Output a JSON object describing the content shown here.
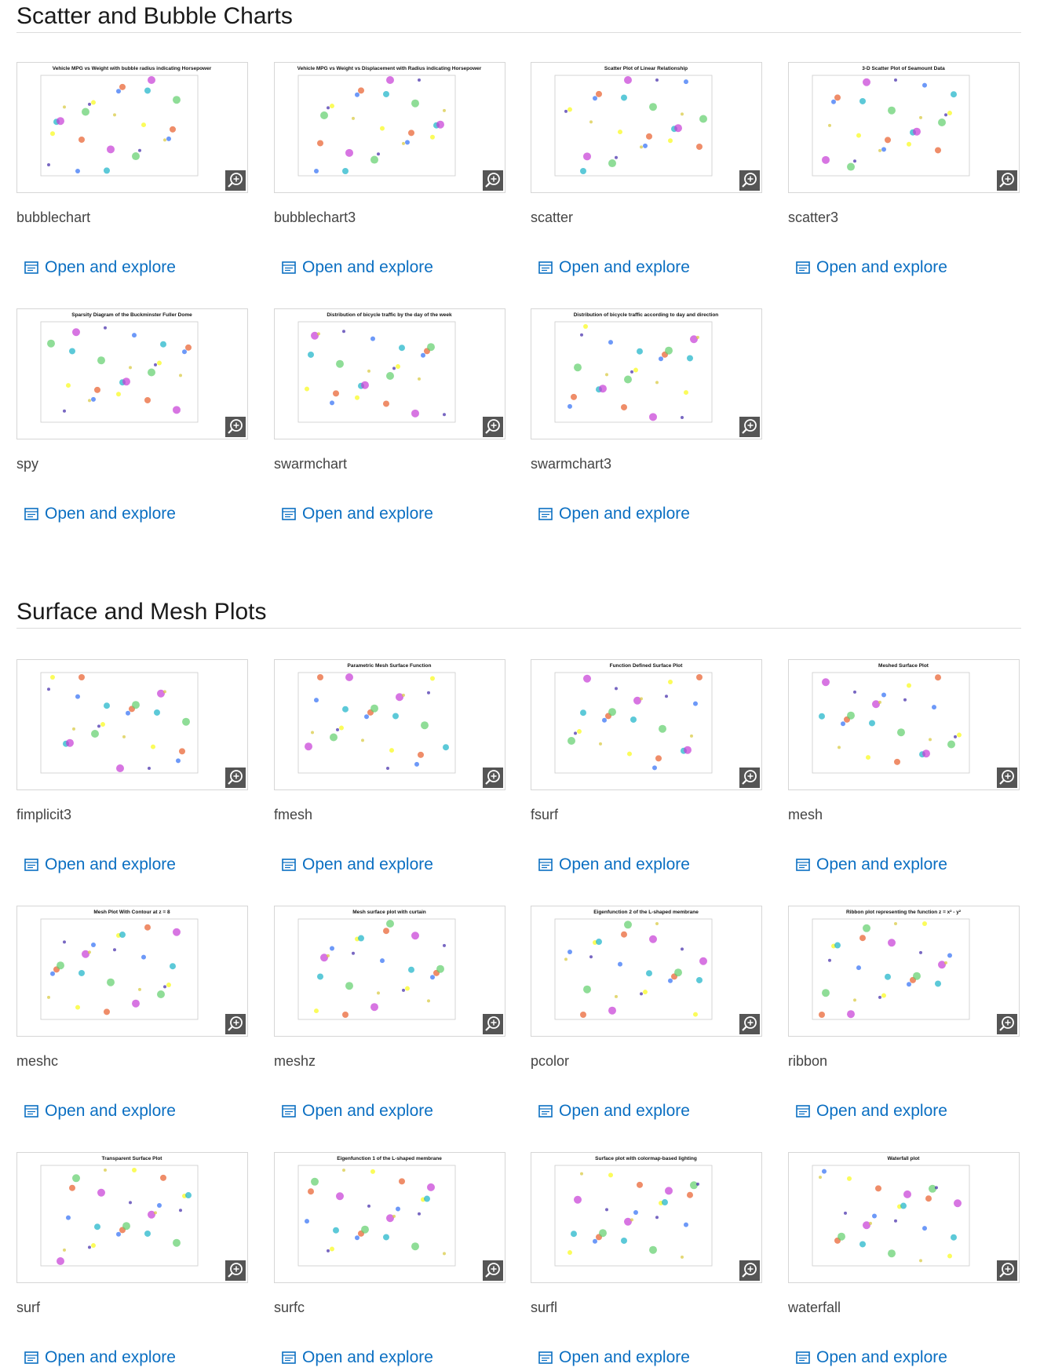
{
  "sections": [
    {
      "title": "Scatter and Bubble Charts",
      "items": [
        {
          "name": "bubblechart",
          "thumb_title": "Vehicle MPG vs Weight with bubble radius indicating Horsepower",
          "link": "Open and explore"
        },
        {
          "name": "bubblechart3",
          "thumb_title": "Vehicle MPG vs Weight vs Displacement with Radius indicating Horsepower",
          "link": "Open and explore"
        },
        {
          "name": "scatter",
          "thumb_title": "Scatter Plot of Linear Relationship",
          "link": "Open and explore"
        },
        {
          "name": "scatter3",
          "thumb_title": "3-D Scatter Plot of Seamount Data",
          "link": "Open and explore"
        },
        {
          "name": "spy",
          "thumb_title": "Sparsity Diagram of the Buckminster Fuller Dome",
          "link": "Open and explore"
        },
        {
          "name": "swarmchart",
          "thumb_title": "Distribution of bicycle traffic by the day of the week",
          "link": "Open and explore"
        },
        {
          "name": "swarmchart3",
          "thumb_title": "Distribution of bicycle traffic according to day and direction",
          "link": "Open and explore"
        }
      ]
    },
    {
      "title": "Surface and Mesh Plots",
      "items": [
        {
          "name": "fimplicit3",
          "link": "Open and explore"
        },
        {
          "name": "fmesh",
          "thumb_title": "Parametric Mesh Surface Function",
          "link": "Open and explore"
        },
        {
          "name": "fsurf",
          "thumb_title": "Function Defined Surface Plot",
          "link": "Open and explore"
        },
        {
          "name": "mesh",
          "thumb_title": "Meshed Surface Plot",
          "link": "Open and explore"
        },
        {
          "name": "meshc",
          "thumb_title": "Mesh Plot With Contour at z = 8",
          "link": "Open and explore"
        },
        {
          "name": "meshz",
          "thumb_title": "Mesh surface plot with curtain",
          "link": "Open and explore"
        },
        {
          "name": "pcolor",
          "thumb_title": "Eigenfunction 2 of the L-shaped membrane",
          "link": "Open and explore"
        },
        {
          "name": "ribbon",
          "thumb_title": "Ribbon plot representing the function z = x² - y²",
          "link": "Open and explore"
        },
        {
          "name": "surf",
          "thumb_title": "Transparent Surface Plot",
          "link": "Open and explore"
        },
        {
          "name": "surfc",
          "thumb_title": "Eigenfunction 1 of the L-shaped membrane",
          "link": "Open and explore"
        },
        {
          "name": "surfl",
          "thumb_title": "Surface plot with colormap-based lighting",
          "link": "Open and explore"
        },
        {
          "name": "waterfall",
          "thumb_title": "Waterfall plot",
          "link": "Open and explore"
        }
      ]
    }
  ]
}
